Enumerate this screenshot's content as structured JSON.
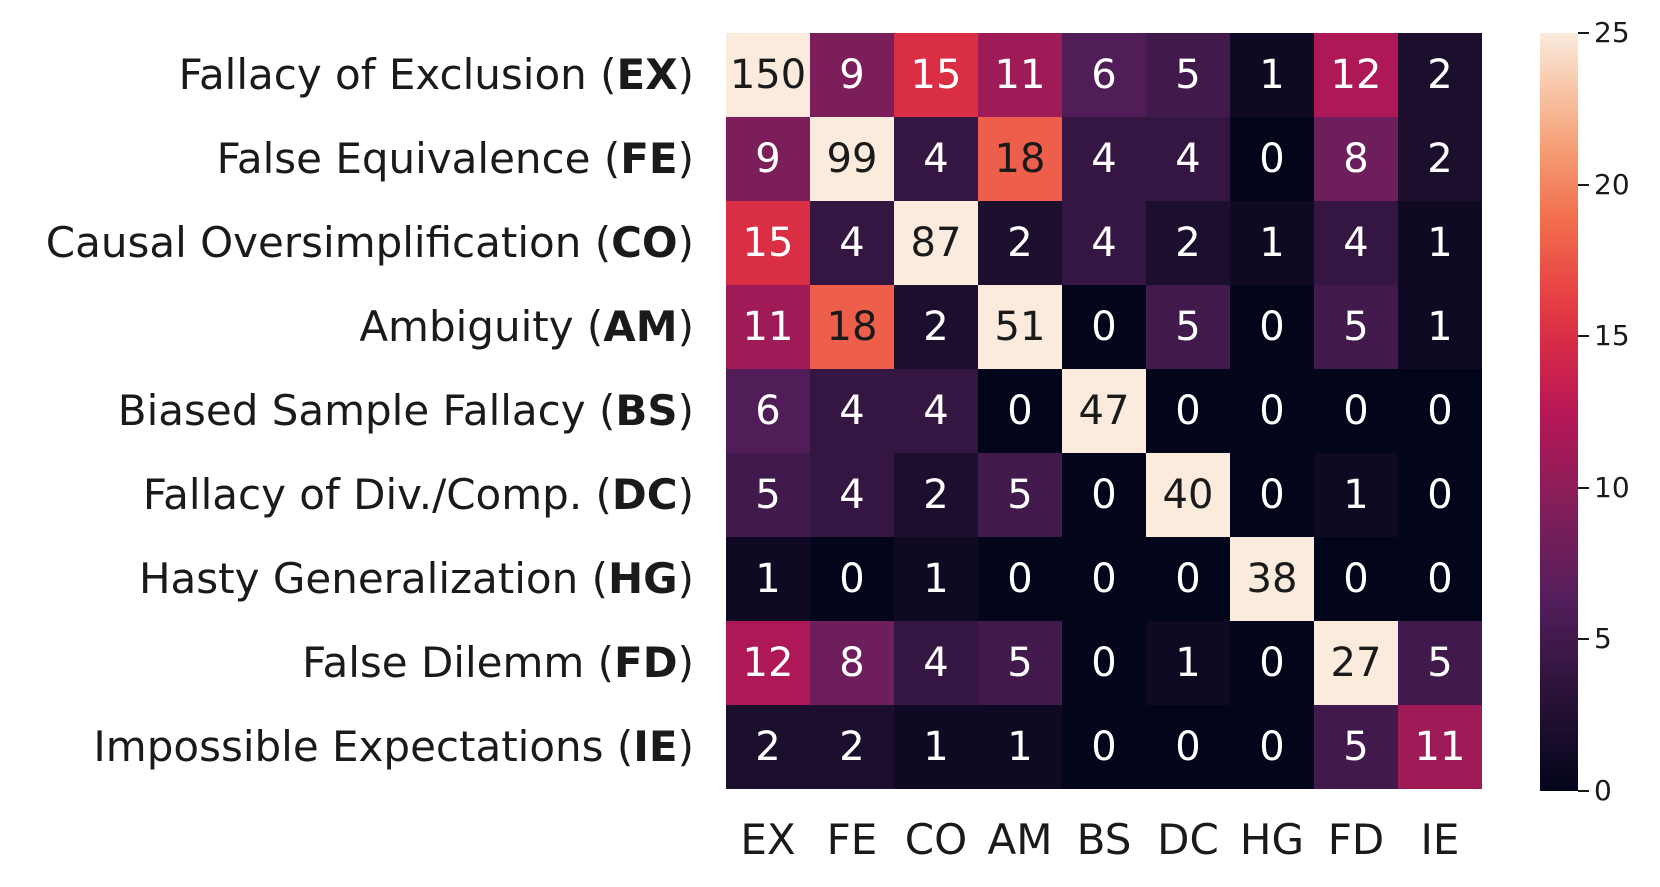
{
  "chart_data": {
    "type": "heatmap",
    "row_labels": [
      {
        "text": "Fallacy of Exclusion (",
        "abbr": "EX",
        "close": ")"
      },
      {
        "text": "False Equivalence (",
        "abbr": "FE",
        "close": ")"
      },
      {
        "text": "Causal Oversimplification (",
        "abbr": "CO",
        "close": ")"
      },
      {
        "text": "Ambiguity (",
        "abbr": "AM",
        "close": ")"
      },
      {
        "text": "Biased Sample Fallacy (",
        "abbr": "BS",
        "close": ")"
      },
      {
        "text": "Fallacy of Div./Comp. (",
        "abbr": "DC",
        "close": ")"
      },
      {
        "text": "Hasty Generalization (",
        "abbr": "HG",
        "close": ")"
      },
      {
        "text": "False Dilemm (",
        "abbr": "FD",
        "close": ")"
      },
      {
        "text": "Impossible Expectations (",
        "abbr": "IE",
        "close": ")"
      }
    ],
    "col_labels": [
      "EX",
      "FE",
      "CO",
      "AM",
      "BS",
      "DC",
      "HG",
      "FD",
      "IE"
    ],
    "values": [
      [
        150,
        9,
        15,
        11,
        6,
        5,
        1,
        12,
        2
      ],
      [
        9,
        99,
        4,
        18,
        4,
        4,
        0,
        8,
        2
      ],
      [
        15,
        4,
        87,
        2,
        4,
        2,
        1,
        4,
        1
      ],
      [
        11,
        18,
        2,
        51,
        0,
        5,
        0,
        5,
        1
      ],
      [
        6,
        4,
        4,
        0,
        47,
        0,
        0,
        0,
        0
      ],
      [
        5,
        4,
        2,
        5,
        0,
        40,
        0,
        1,
        0
      ],
      [
        1,
        0,
        1,
        0,
        0,
        0,
        38,
        0,
        0
      ],
      [
        12,
        8,
        4,
        5,
        0,
        1,
        0,
        27,
        5
      ],
      [
        2,
        2,
        1,
        1,
        0,
        0,
        0,
        5,
        11
      ]
    ],
    "colorbar": {
      "vmin": 0,
      "vmax": 25,
      "ticks": [
        0,
        5,
        10,
        15,
        20,
        25
      ],
      "colormap": "rocket"
    }
  }
}
